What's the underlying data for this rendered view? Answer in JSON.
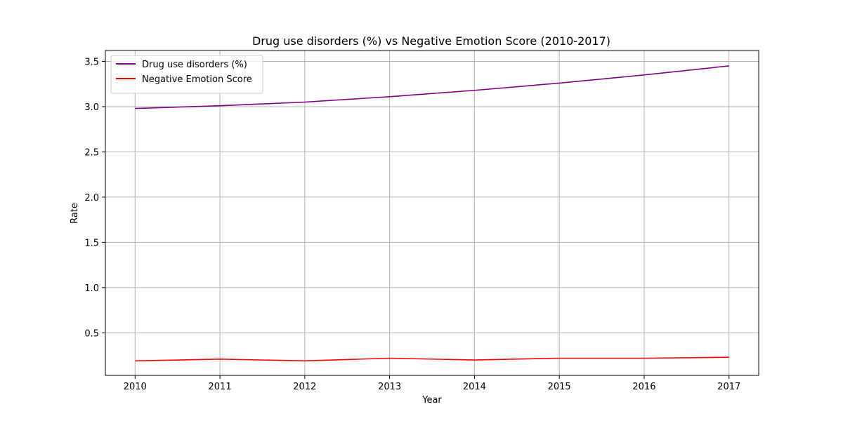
{
  "chart_data": {
    "type": "line",
    "title": "Drug use disorders (%) vs Negative Emotion Score (2010-2017)",
    "xlabel": "Year",
    "ylabel": "Rate",
    "x": [
      2010,
      2011,
      2012,
      2013,
      2014,
      2015,
      2016,
      2017
    ],
    "xlim": [
      2009.65,
      2017.35
    ],
    "ylim": [
      0.03,
      3.62
    ],
    "x_ticks": [
      "2010",
      "2011",
      "2012",
      "2013",
      "2014",
      "2015",
      "2016",
      "2017"
    ],
    "y_ticks": [
      "0.5",
      "1.0",
      "1.5",
      "2.0",
      "2.5",
      "3.0",
      "3.5"
    ],
    "grid": true,
    "legend_position": "upper-left",
    "series": [
      {
        "name": "Drug use disorders (%)",
        "color": "#800080",
        "values": [
          2.98,
          3.01,
          3.05,
          3.11,
          3.18,
          3.26,
          3.35,
          3.45
        ]
      },
      {
        "name": "Negative Emotion Score",
        "color": "#ff0000",
        "values": [
          0.19,
          0.21,
          0.19,
          0.22,
          0.2,
          0.22,
          0.22,
          0.23
        ]
      }
    ]
  }
}
